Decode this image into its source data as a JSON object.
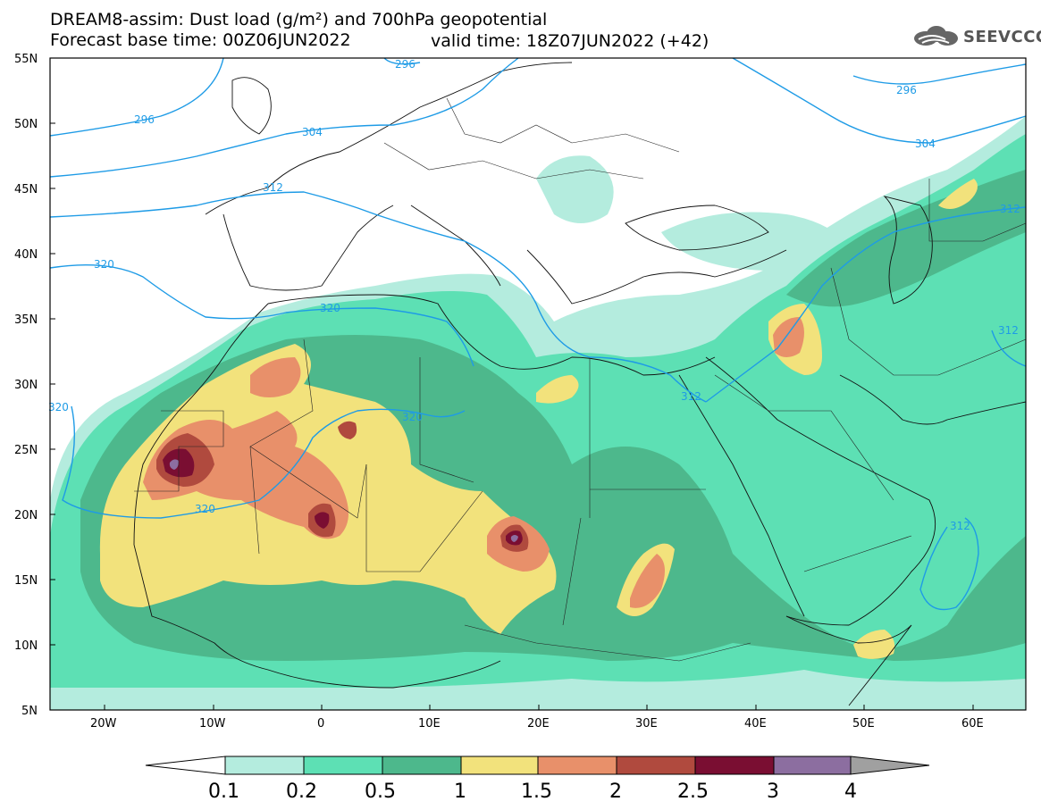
{
  "header": {
    "title_line1": "DREAM8-assim: Dust load (g/m²) and 700hPa geopotential",
    "title_line2": "Forecast base time: 00Z06JUN2022",
    "valid_time": "valid time: 18Z07JUN2022 (+42)",
    "logo_text": "SEEVCCC"
  },
  "axes": {
    "lat_labels": [
      "55N",
      "50N",
      "45N",
      "40N",
      "35N",
      "30N",
      "25N",
      "20N",
      "15N",
      "10N",
      "5N"
    ],
    "lon_labels": [
      "20W",
      "10W",
      "0",
      "10E",
      "20E",
      "30E",
      "40E",
      "50E",
      "60E"
    ]
  },
  "contours": {
    "labels": [
      "296",
      "296",
      "296",
      "304",
      "304",
      "312",
      "312",
      "312",
      "312",
      "312",
      "320",
      "320",
      "320",
      "320",
      "320"
    ]
  },
  "colorbar": {
    "ticks": [
      "0.1",
      "0.2",
      "0.5",
      "1",
      "1.5",
      "2",
      "2.5",
      "3",
      "4"
    ],
    "colors": [
      "#ffffff",
      "#b4ecde",
      "#5de0b4",
      "#4db88c",
      "#f2e27c",
      "#e8906a",
      "#b04a3e",
      "#7a0e32",
      "#8c6ea0",
      "#a0a0a0"
    ]
  },
  "palette": {
    "ocean": "#ffffff",
    "c01": "#b4ecde",
    "c02": "#5de0b4",
    "c05": "#4db88c",
    "c1": "#f2e27c",
    "c15": "#e8906a",
    "c2": "#b04a3e",
    "c25": "#7a0e32",
    "c3": "#8c6ea0",
    "contour": "#1e9be6"
  }
}
